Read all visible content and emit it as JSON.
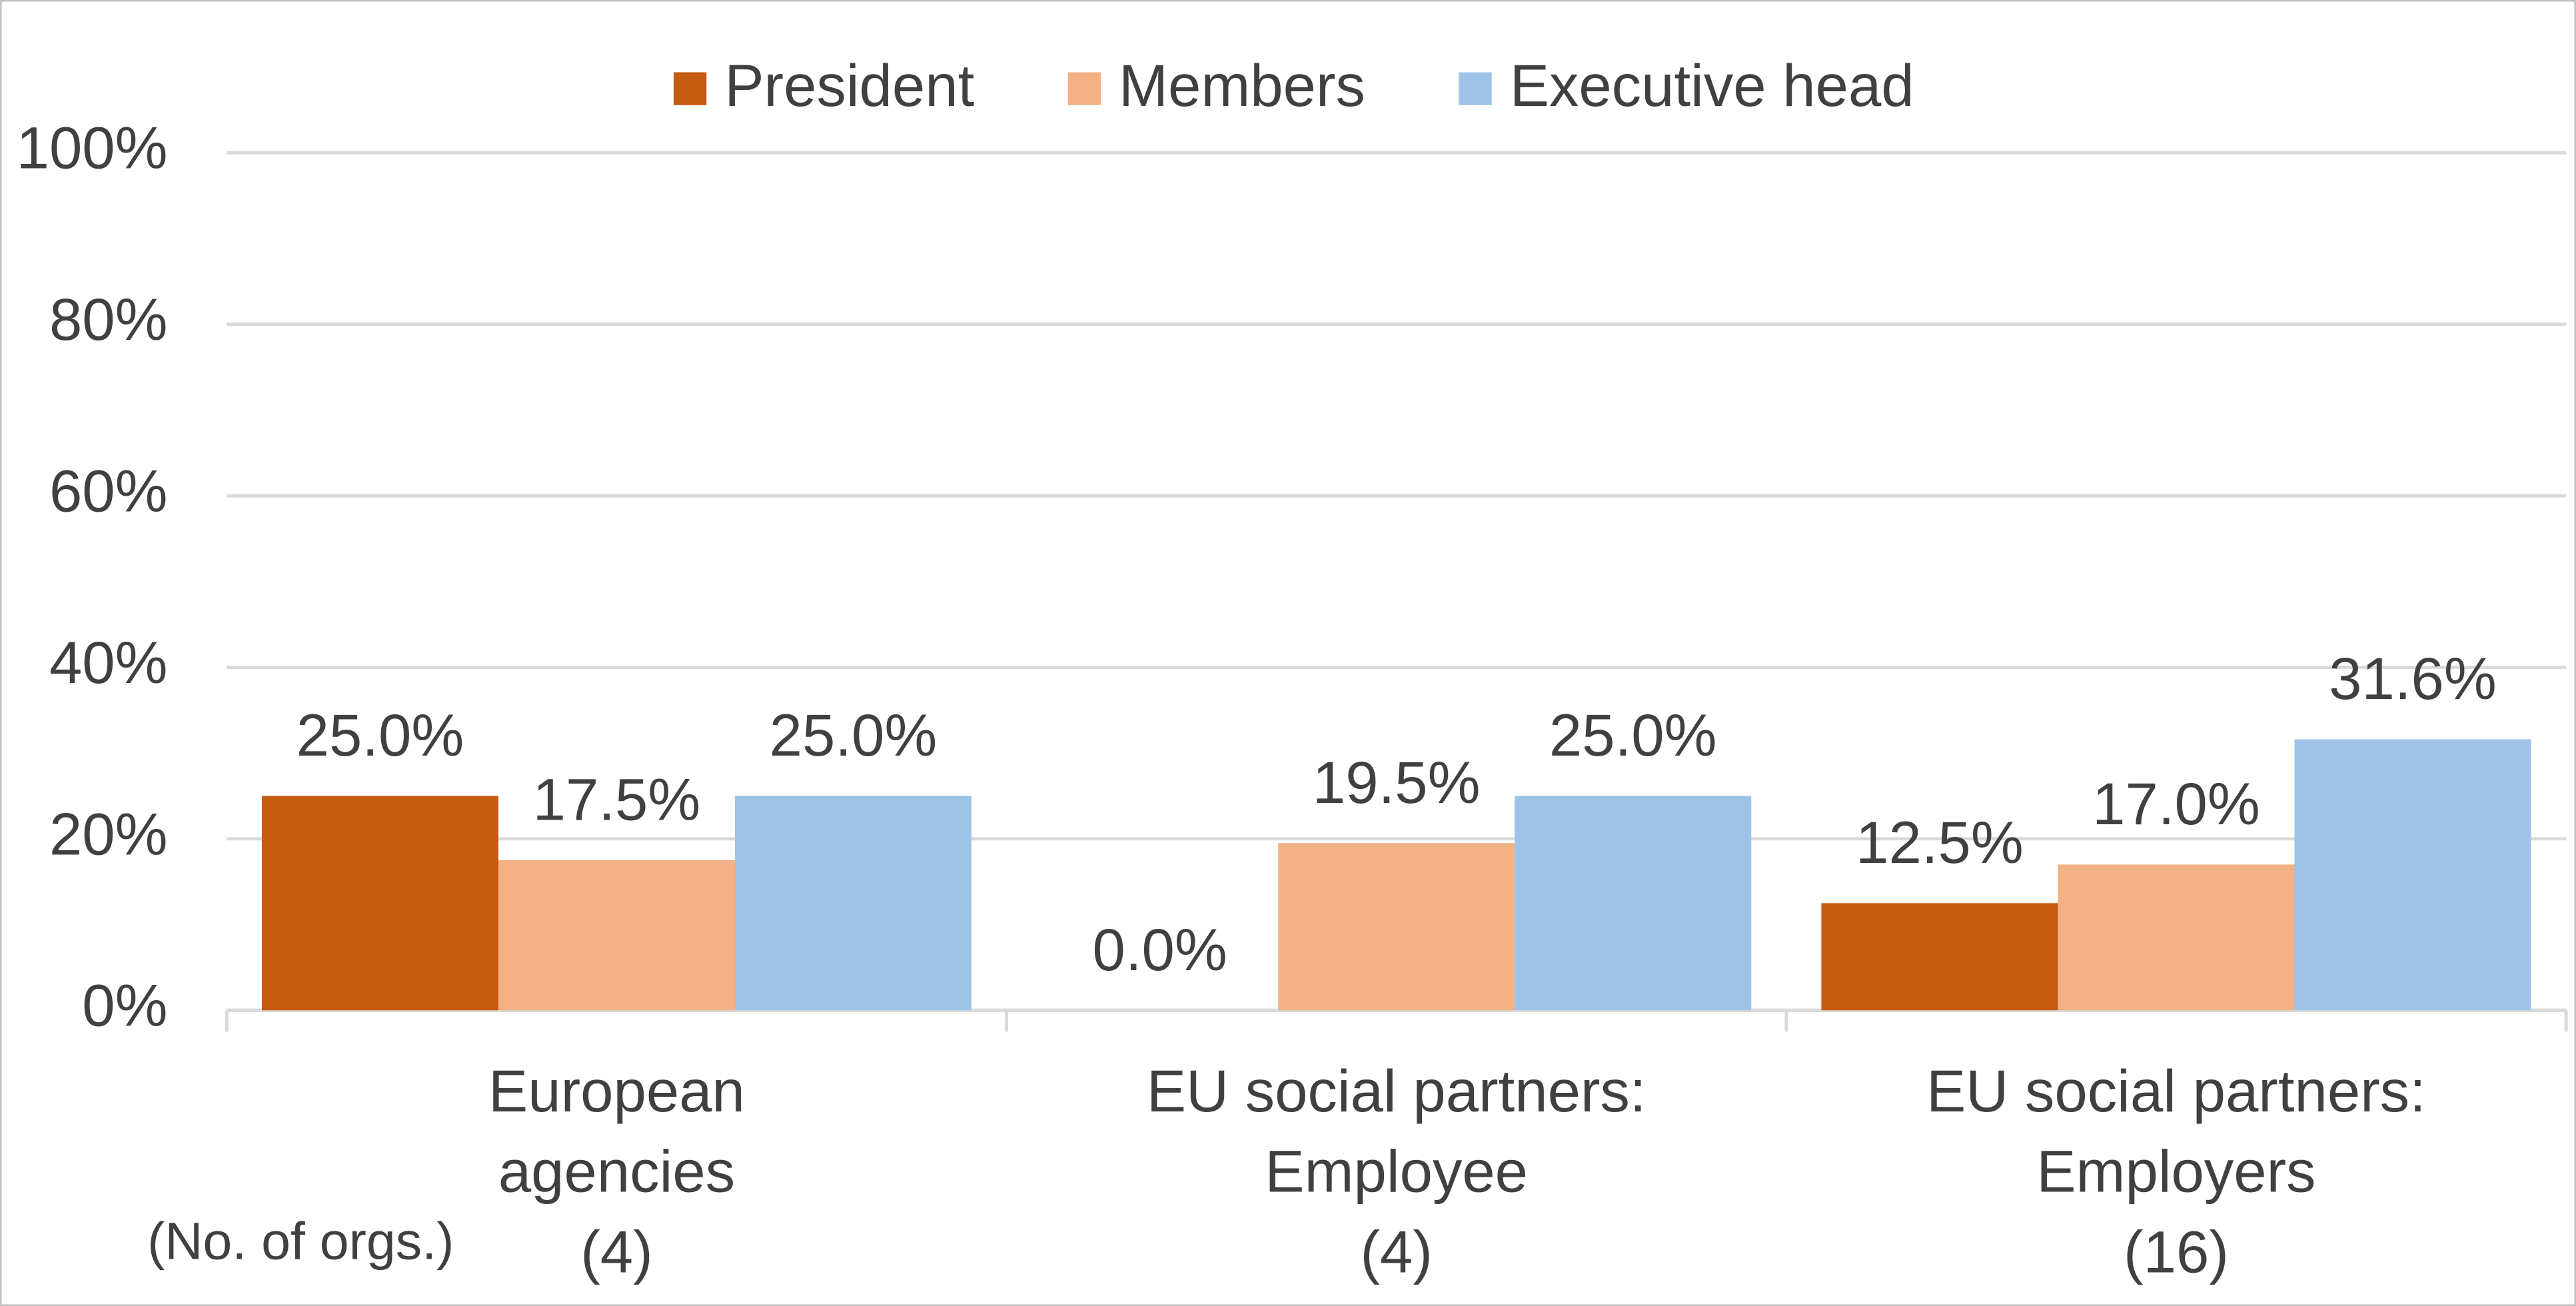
{
  "chart_data": {
    "type": "bar",
    "categories": [
      [
        "European",
        "agencies",
        "(4)"
      ],
      [
        "EU social partners:",
        "Employee",
        "(4)"
      ],
      [
        "EU social partners:",
        "Employers",
        "(16)"
      ]
    ],
    "x_note": "(No. of orgs.)",
    "series": [
      {
        "name": "President",
        "color": "#c55a11",
        "values": [
          25.0,
          0.0,
          12.5
        ],
        "value_labels": [
          "25.0%",
          "0.0%",
          "12.5%"
        ]
      },
      {
        "name": "Members",
        "color": "#f4b183",
        "values": [
          17.5,
          19.5,
          17.0
        ],
        "value_labels": [
          "17.5%",
          "19.5%",
          "17.0%"
        ]
      },
      {
        "name": "Executive head",
        "color": "#9dc3e6",
        "values": [
          25.0,
          25.0,
          31.6
        ],
        "value_labels": [
          "25.0%",
          "25.0%",
          "31.6%"
        ]
      }
    ],
    "ylim": [
      0,
      100
    ],
    "yticks": [
      {
        "value": 0,
        "label": "0%"
      },
      {
        "value": 20,
        "label": "20%"
      },
      {
        "value": 40,
        "label": "40%"
      },
      {
        "value": 60,
        "label": "60%"
      },
      {
        "value": 80,
        "label": "80%"
      },
      {
        "value": 100,
        "label": "100%"
      }
    ],
    "grid": true,
    "legend": "top"
  }
}
